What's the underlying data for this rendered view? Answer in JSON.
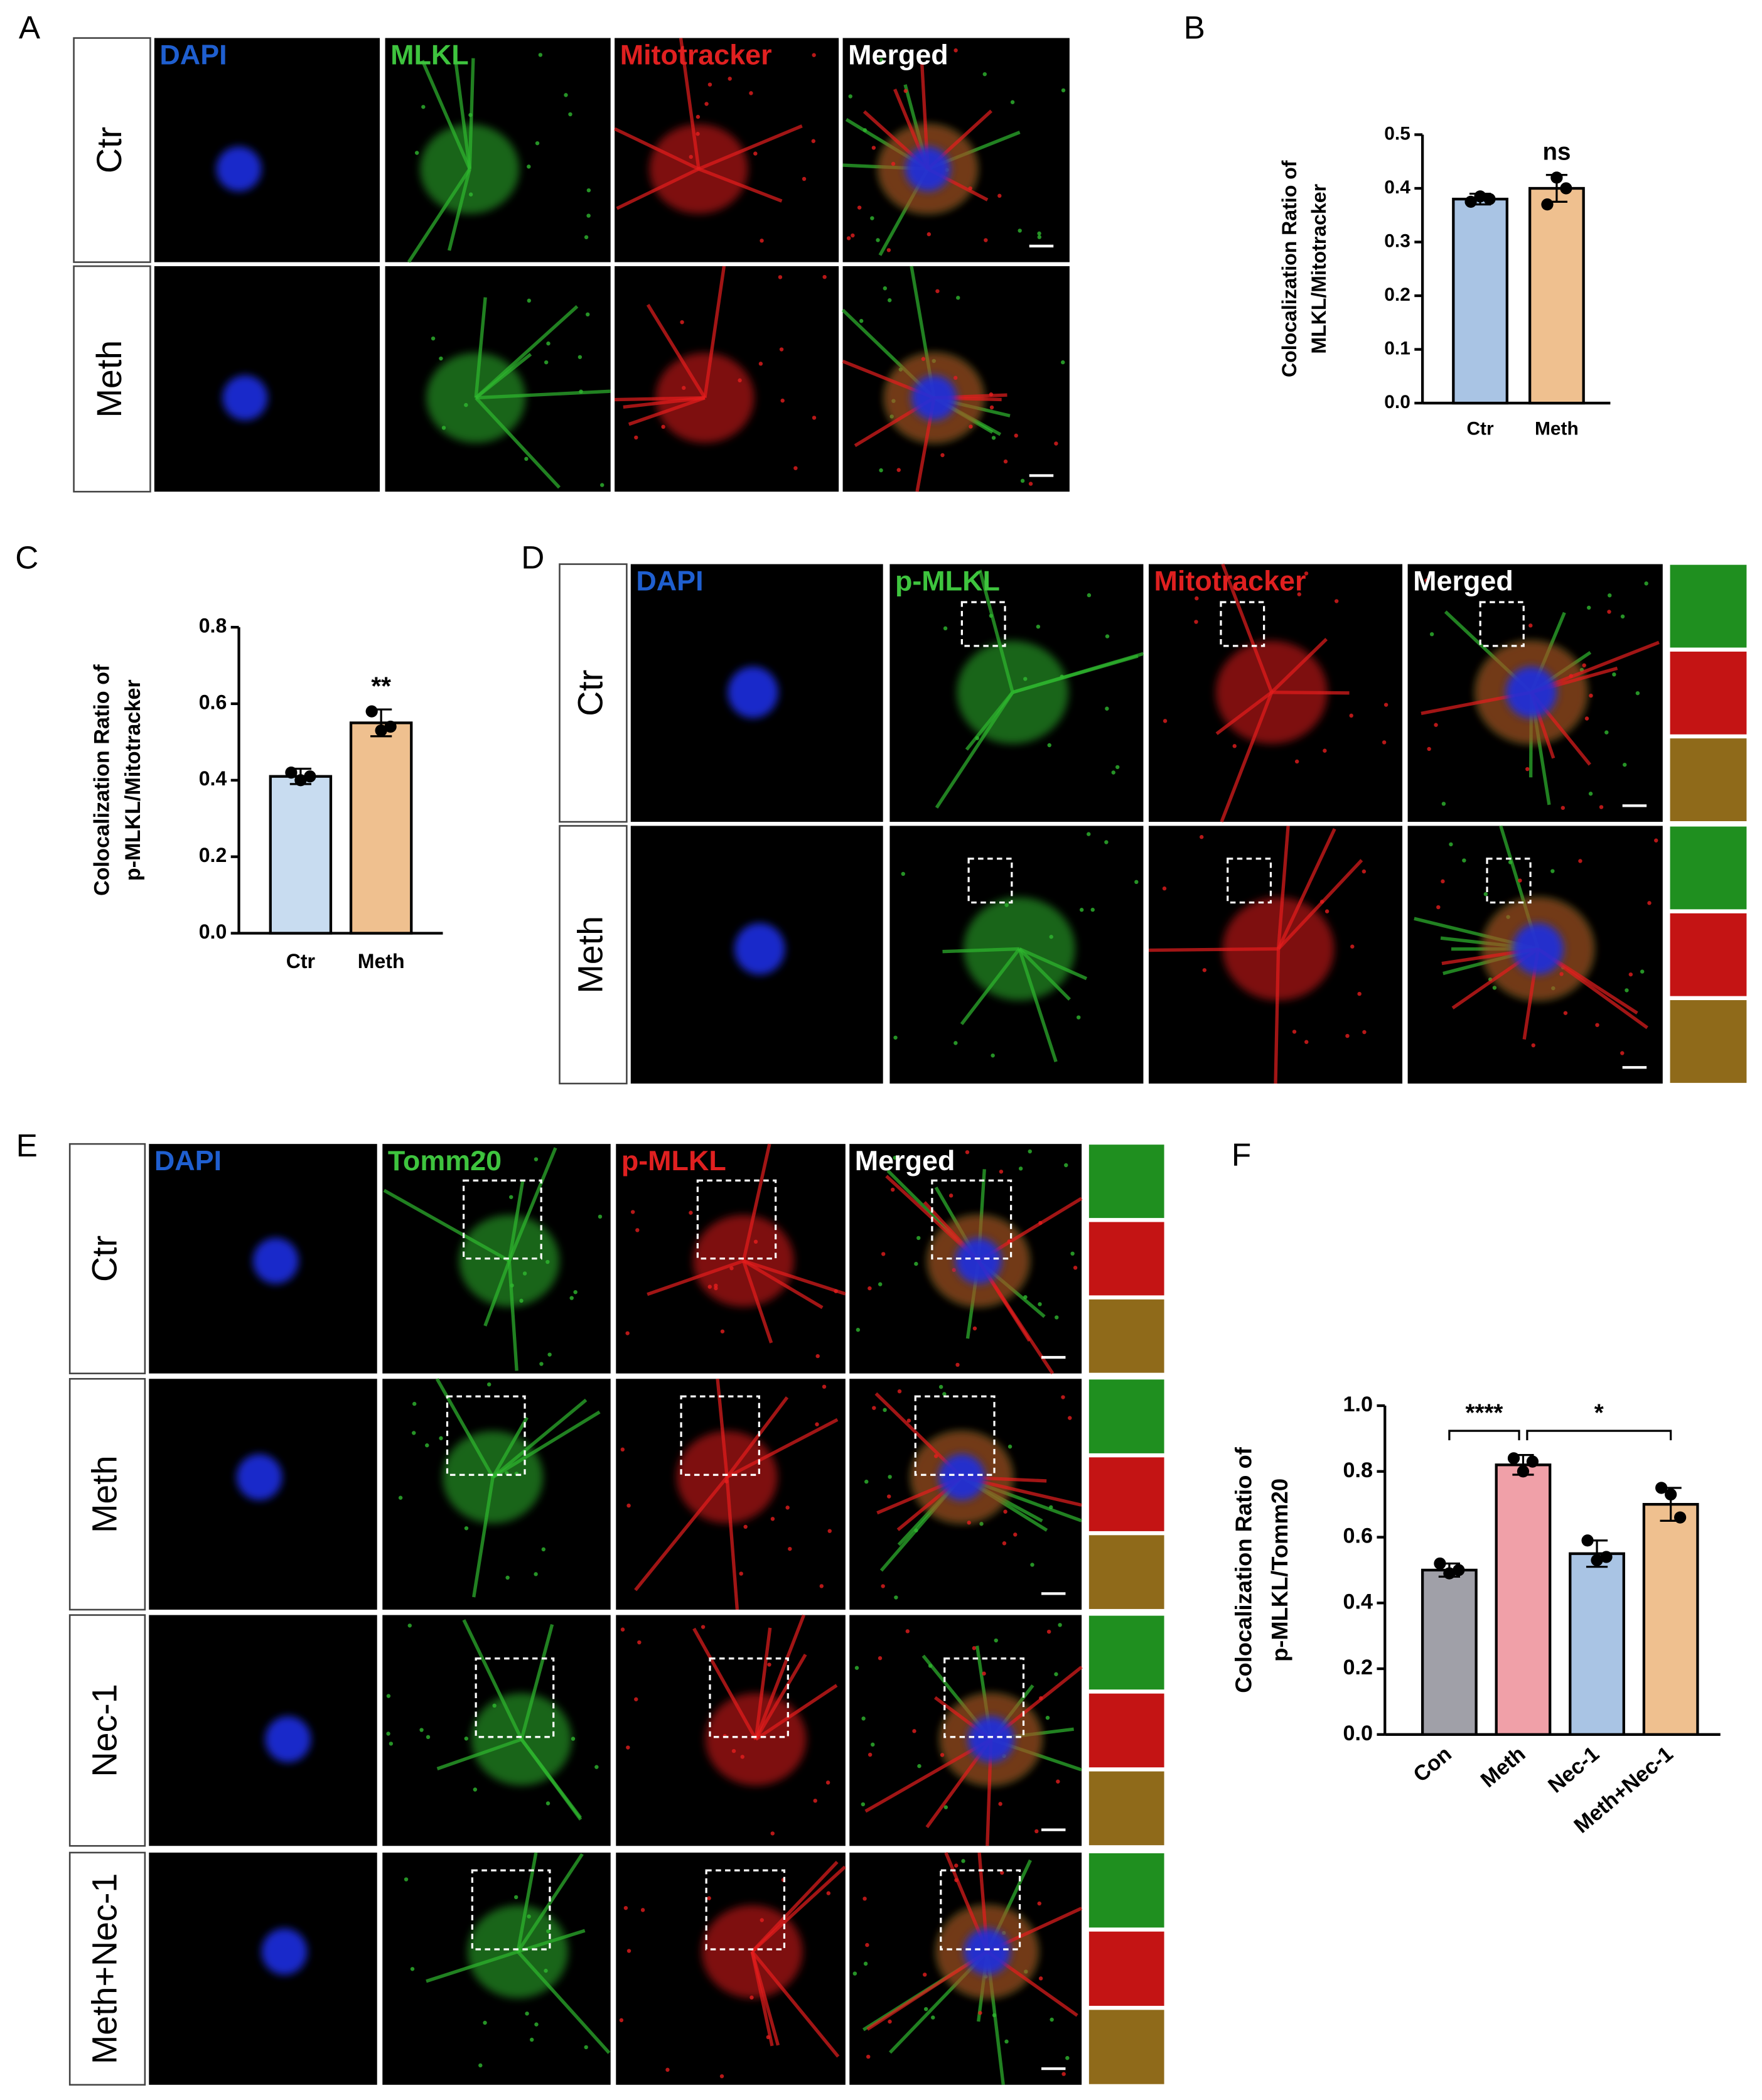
{
  "figure": {
    "panels": [
      {
        "label": "A",
        "columns": [
          "DAPI",
          "MLKL",
          "Mitotracker",
          "Merged"
        ],
        "rows": [
          "Ctr",
          "Meth"
        ]
      },
      {
        "label": "D",
        "columns": [
          "DAPI",
          "p-MLKL",
          "Mitotracker",
          "Merged"
        ],
        "rows": [
          "Ctr",
          "Meth"
        ]
      },
      {
        "label": "E",
        "columns": [
          "DAPI",
          "Tomm20",
          "p-MLKL",
          "Merged"
        ],
        "rows": [
          "Ctr",
          "Meth",
          "Nec-1",
          "Meth+Nec-1"
        ]
      }
    ]
  },
  "chart_data": [
    {
      "type": "bar",
      "panel_label": "B",
      "ylabel": [
        "Colocalization Ratio of",
        "MLKL/Mitotracker"
      ],
      "categories": [
        "Ctr",
        "Meth"
      ],
      "values": [
        0.38,
        0.4
      ],
      "errors": [
        0.01,
        0.025
      ],
      "points": [
        [
          0.375,
          0.385,
          0.38
        ],
        [
          0.37,
          0.42,
          0.4
        ]
      ],
      "colors": [
        "#a9c4e4",
        "#efc08f"
      ],
      "ylim": [
        0,
        0.5
      ],
      "yticks": [
        {
          "value": 0,
          "label": "0.0"
        },
        0.1,
        0.2,
        0.3,
        0.4,
        0.5
      ],
      "annotations": [
        {
          "text": "ns",
          "over": "Meth"
        }
      ]
    },
    {
      "type": "bar",
      "panel_label": "C",
      "ylabel": [
        "Colocalization Ratio of",
        "p-MLKL/Mitotracker"
      ],
      "categories": [
        "Ctr",
        "Meth"
      ],
      "values": [
        0.41,
        0.55
      ],
      "errors": [
        0.02,
        0.035
      ],
      "points": [
        [
          0.42,
          0.4,
          0.41
        ],
        [
          0.58,
          0.53,
          0.54
        ]
      ],
      "colors": [
        "#c8dcf0",
        "#efc08f"
      ],
      "ylim": [
        0,
        0.8
      ],
      "yticks": [
        {
          "value": 0,
          "label": "0.0"
        },
        0.2,
        0.4,
        0.6,
        0.8
      ],
      "annotations": [
        {
          "text": "**",
          "over": "Meth"
        }
      ]
    },
    {
      "type": "bar",
      "panel_label": "F",
      "ylabel": [
        "Colocalization Ratio of",
        "p-MLKL/Tomm20"
      ],
      "categories": [
        "Con",
        "Meth",
        "Nec-1",
        "Meth+Nec-1"
      ],
      "values": [
        0.5,
        0.82,
        0.55,
        0.7
      ],
      "errors": [
        0.02,
        0.03,
        0.04,
        0.05
      ],
      "points": [
        [
          0.52,
          0.49,
          0.5
        ],
        [
          0.84,
          0.8,
          0.83
        ],
        [
          0.59,
          0.53,
          0.54
        ],
        [
          0.75,
          0.73,
          0.66
        ]
      ],
      "colors": [
        "#a0a0a8",
        "#f0a0a8",
        "#a9c4e4",
        "#efc08f"
      ],
      "ylim": [
        0,
        1
      ],
      "yticks": [
        {
          "value": 0,
          "label": "0.0"
        },
        0.2,
        0.4,
        0.6,
        0.8,
        {
          "value": 1,
          "label": "1.0"
        }
      ],
      "brackets": [
        {
          "text": "****",
          "from": "Con",
          "to": "Meth"
        },
        {
          "text": "*",
          "from": "Meth",
          "to": "Meth+Nec-1"
        }
      ]
    }
  ]
}
